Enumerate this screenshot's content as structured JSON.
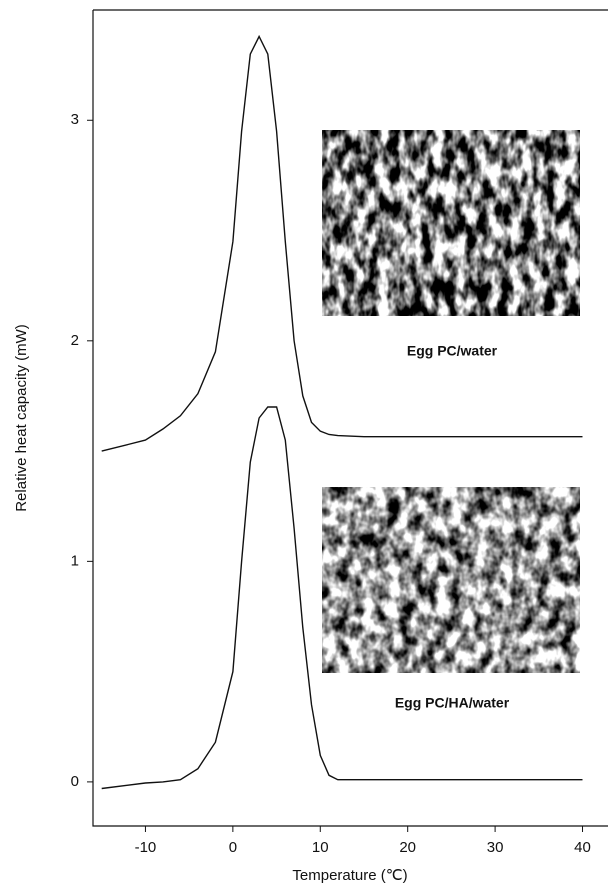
{
  "chart_data": {
    "type": "line",
    "xlabel": "Temperature (℃)",
    "ylabel": "Relative heat capacity (mW)",
    "x": [
      -15,
      -12,
      -10,
      -8,
      -6,
      -4,
      -2,
      0,
      1,
      2,
      3,
      4,
      5,
      6,
      7,
      8,
      9,
      10,
      11,
      12,
      15,
      20,
      30,
      40
    ],
    "series": [
      {
        "name": "Egg PC/water",
        "color": "#111111",
        "values": [
          1.5,
          1.53,
          1.55,
          1.6,
          1.66,
          1.76,
          1.95,
          2.45,
          2.95,
          3.3,
          3.38,
          3.3,
          2.95,
          2.45,
          2.0,
          1.75,
          1.63,
          1.59,
          1.575,
          1.57,
          1.565,
          1.565,
          1.565,
          1.565
        ]
      },
      {
        "name": "Egg PC/HA/water",
        "color": "#111111",
        "values": [
          -0.03,
          -0.015,
          -0.005,
          0.0,
          0.01,
          0.06,
          0.18,
          0.5,
          1.0,
          1.45,
          1.65,
          1.7,
          1.7,
          1.55,
          1.15,
          0.7,
          0.35,
          0.12,
          0.03,
          0.01,
          0.01,
          0.01,
          0.01,
          0.01
        ]
      }
    ],
    "xlim": [
      -16,
      42
    ],
    "xticks": [
      -10,
      0,
      10,
      20,
      30,
      40
    ],
    "ylim": [
      -0.2,
      3.5
    ],
    "yticks": [
      0,
      1,
      2,
      3
    ]
  }
}
